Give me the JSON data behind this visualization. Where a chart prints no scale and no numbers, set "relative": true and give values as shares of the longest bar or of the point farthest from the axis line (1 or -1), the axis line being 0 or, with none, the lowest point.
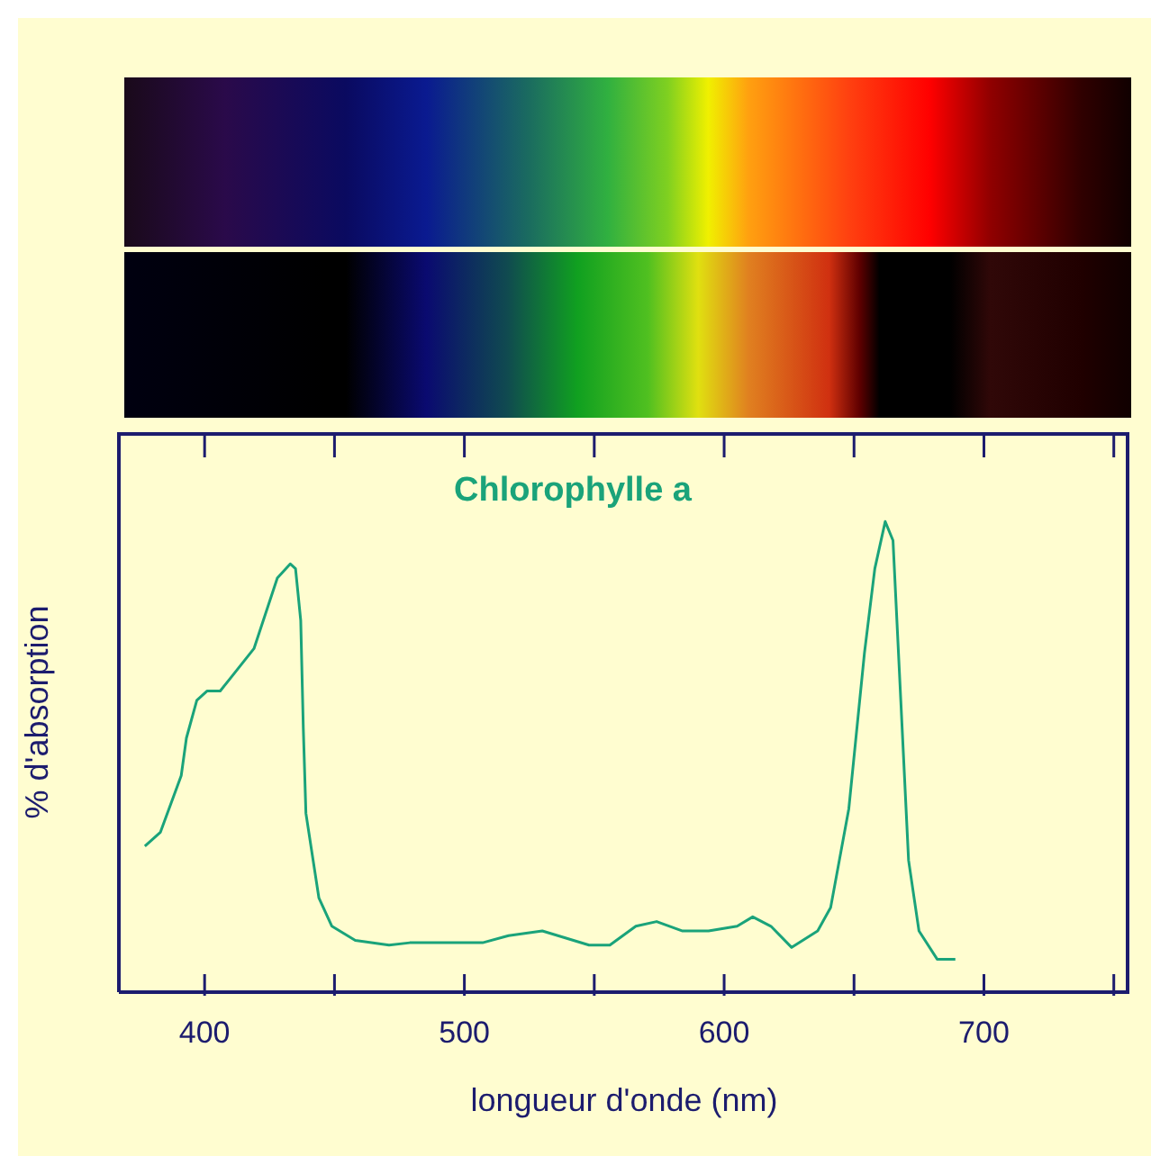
{
  "chart_data": {
    "type": "line",
    "relative": true,
    "xlabel": "longueur d'onde (nm)",
    "ylabel": "% d'absorption",
    "xlim": [
      367,
      756
    ],
    "xticks": [
      400,
      {
        "value": 450,
        "label": null
      },
      500,
      {
        "value": 550,
        "label": null
      },
      600,
      {
        "value": 650,
        "label": null
      },
      700,
      {
        "value": 750,
        "label": null
      }
    ],
    "marker": "none",
    "series": [
      {
        "name": "Chlorophylle a",
        "color": "#1aa37a",
        "x": [
          377,
          383,
          391,
          393,
          397,
          401,
          406,
          419,
          428,
          433,
          435,
          437,
          438,
          439,
          444,
          449,
          458,
          471,
          479,
          507,
          517,
          530,
          548,
          556,
          566,
          574,
          584,
          594,
          605,
          611,
          618,
          626,
          636,
          641,
          648,
          654,
          658,
          662,
          665,
          668,
          671,
          675,
          682,
          689
        ],
        "values": [
          0.31,
          0.34,
          0.46,
          0.54,
          0.62,
          0.64,
          0.64,
          0.73,
          0.88,
          0.91,
          0.9,
          0.79,
          0.56,
          0.38,
          0.2,
          0.14,
          0.11,
          0.1,
          0.105,
          0.105,
          0.12,
          0.13,
          0.1,
          0.1,
          0.14,
          0.15,
          0.13,
          0.13,
          0.14,
          0.16,
          0.14,
          0.095,
          0.13,
          0.18,
          0.39,
          0.72,
          0.9,
          1,
          0.96,
          0.62,
          0.28,
          0.13,
          0.07,
          0.07
        ]
      }
    ]
  }
}
